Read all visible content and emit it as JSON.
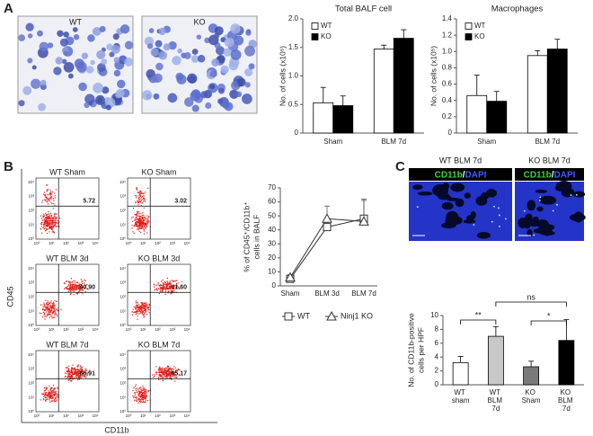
{
  "panel_labels": [
    "A",
    "B",
    "C"
  ],
  "micrographs": {
    "labels": [
      "WT",
      "KO"
    ]
  },
  "flow": {
    "y_label": "CD45",
    "x_label": "CD11b",
    "tick_labels": [
      "10⁰",
      "10¹",
      "10²",
      "10³",
      "10⁴"
    ],
    "plots": [
      {
        "label": "WT Sham",
        "percent": "5.72"
      },
      {
        "label": "KO Sham",
        "percent": "3.02"
      },
      {
        "label": "WT BLM 3d",
        "percent": "40.90"
      },
      {
        "label": "KO BLM 3d",
        "percent": "41.60"
      },
      {
        "label": "WT BLM 7d",
        "percent": "66.91"
      },
      {
        "label": "KO BLM 7d",
        "percent": "65.17"
      }
    ]
  },
  "immunofluorescence": {
    "labels": [
      "WT BLM 7d",
      "KO BLM 7d"
    ],
    "stain": [
      "CD11b",
      "/",
      "DAPI"
    ]
  },
  "chart_data": [
    {
      "type": "bar",
      "title": "Total BALF cell",
      "y_label": "No. of cells (x10⁵)",
      "categories": [
        "Sham",
        "BLM 7d"
      ],
      "series": [
        {
          "name": "WT",
          "color": "#ffffff",
          "values": [
            0.53,
            1.47
          ],
          "errors": [
            0.27,
            0.07
          ]
        },
        {
          "name": "KO",
          "color": "#000000",
          "values": [
            0.48,
            1.66
          ],
          "errors": [
            0.17,
            0.15
          ]
        }
      ],
      "ylim": [
        0,
        2
      ],
      "yticks": [
        0,
        0.5,
        {
          "value": 1,
          "label": "1.0"
        },
        1.5,
        {
          "value": 2,
          "label": "2.0"
        }
      ],
      "legend": "upper left"
    },
    {
      "type": "bar",
      "title": "Macrophages",
      "y_label": "No. of cells (x10⁵)",
      "categories": [
        "Sham",
        "BLM 7d"
      ],
      "series": [
        {
          "name": "WT",
          "color": "#ffffff",
          "values": [
            0.46,
            0.95
          ],
          "errors": [
            0.25,
            0.06
          ]
        },
        {
          "name": "KO",
          "color": "#000000",
          "values": [
            0.39,
            1.03
          ],
          "errors": [
            0.12,
            0.12
          ]
        }
      ],
      "ylim": [
        0,
        1.4
      ],
      "yticks": [
        0,
        0.2,
        0.4,
        0.6,
        0.8,
        {
          "value": 1,
          "label": "1.0"
        },
        1.2,
        1.4
      ],
      "legend": "upper left"
    },
    {
      "type": "line",
      "y_label": [
        "% of CD45⁺/CD11b⁺",
        "cells in BALF"
      ],
      "categories": [
        "Sham",
        "BLM 3d",
        "BLM 7d"
      ],
      "series": [
        {
          "name": "WT",
          "color": "#333333",
          "marker": "square",
          "values": [
            5,
            42,
            48
          ],
          "errors": [
            2,
            5,
            13
          ]
        },
        {
          "name": "Ninj1 KO",
          "color": "#333333",
          "marker": "triangle",
          "values": [
            6,
            48,
            46
          ],
          "errors": [
            2,
            9,
            16
          ]
        }
      ],
      "ylim": [
        0,
        70
      ],
      "yticks": [
        0,
        10,
        20,
        30,
        40,
        50,
        60,
        70
      ],
      "legend": "bottom"
    },
    {
      "type": "bar",
      "y_label": [
        "No. of CD11b-positive",
        "cells per HPF"
      ],
      "categories": [
        "WT sham",
        "WT BLM 7d",
        "KO Sham",
        "KO BLM 7d"
      ],
      "series": [
        {
          "colors": [
            "#ffffff",
            "#c8c8c8",
            "#7a7a7a",
            "#000000"
          ],
          "values": [
            3.2,
            7.0,
            2.6,
            6.4
          ],
          "errors": [
            0.9,
            1.4,
            0.8,
            3.0
          ]
        }
      ],
      "ylim": [
        0,
        10
      ],
      "yticks": [
        0,
        2,
        4,
        6,
        8,
        10
      ],
      "annotations": [
        "**",
        "ns",
        "*"
      ]
    }
  ]
}
